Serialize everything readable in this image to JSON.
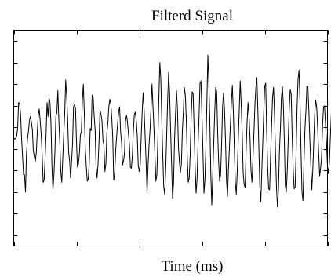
{
  "chart_data": {
    "type": "line",
    "title": "Filterd Signal",
    "xlabel": "Time (ms)",
    "ylabel": "",
    "xlim": [
      0,
      400
    ],
    "ylim": [
      -1,
      1
    ],
    "x_ticks": [
      0,
      80,
      160,
      240,
      320,
      400
    ],
    "y_ticks": [
      -0.9,
      -0.7,
      -0.5,
      -0.3,
      -0.1,
      0.1,
      0.3,
      0.5,
      0.7,
      0.9
    ],
    "x_tick_labels": [],
    "y_tick_labels": [],
    "grid": false,
    "legend": "none",
    "series": [
      {
        "color": "#000000",
        "x_start": 0,
        "x_step": 1.25,
        "values": [
          0.0,
          -0.01,
          0.0,
          0.02,
          0.09,
          0.33,
          0.32,
          0.22,
          0.0,
          -0.17,
          -0.34,
          -0.34,
          -0.5,
          -0.15,
          -0.01,
          0.06,
          0.16,
          0.2,
          0.15,
          0.08,
          -0.12,
          -0.17,
          -0.22,
          -0.14,
          0.05,
          0.21,
          0.27,
          0.16,
          0.03,
          -0.15,
          -0.41,
          -0.39,
          -0.19,
          0.04,
          0.33,
          0.2,
          0.37,
          0.33,
          0.13,
          -0.27,
          -0.48,
          -0.34,
          -0.13,
          0.2,
          0.24,
          0.44,
          0.17,
          -0.04,
          -0.31,
          -0.41,
          -0.19,
          0.04,
          0.23,
          0.54,
          0.39,
          0.18,
          -0.13,
          -0.21,
          -0.37,
          -0.22,
          -0.05,
          0.29,
          0.31,
          0.28,
          -0.03,
          -0.27,
          -0.24,
          -0.14,
          0.03,
          0.06,
          0.35,
          0.5,
          0.23,
          -0.1,
          -0.26,
          -0.4,
          -0.38,
          -0.24,
          0.09,
          0.07,
          0.4,
          0.38,
          0.21,
          0.08,
          -0.27,
          -0.37,
          -0.24,
          -0.03,
          0.26,
          0.22,
          0.16,
          -0.02,
          -0.07,
          -0.31,
          -0.24,
          0.05,
          0.14,
          0.29,
          0.36,
          0.32,
          0.19,
          0.0,
          -0.39,
          -0.33,
          -0.11,
          0.02,
          0.14,
          0.24,
          0.29,
          0.06,
          -0.04,
          -0.25,
          -0.21,
          -0.14,
          0.16,
          0.21,
          0.15,
          0.04,
          -0.06,
          -0.27,
          -0.28,
          -0.16,
          0.07,
          0.22,
          0.24,
          0.16,
          0.02,
          -0.25,
          -0.31,
          -0.25,
          0.01,
          0.24,
          0.42,
          0.26,
          0.02,
          -0.21,
          -0.51,
          -0.26,
          -0.07,
          0.07,
          0.27,
          0.5,
          0.3,
          0.09,
          -0.15,
          -0.4,
          -0.34,
          -0.02,
          0.36,
          0.7,
          0.55,
          0.18,
          -0.16,
          -0.45,
          -0.52,
          -0.29,
          0.02,
          0.36,
          0.61,
          0.41,
          0.08,
          -0.24,
          -0.56,
          -0.42,
          -0.02,
          0.22,
          0.44,
          0.27,
          -0.08,
          -0.22,
          -0.32,
          -0.24,
          0.07,
          0.24,
          0.47,
          0.4,
          0.18,
          -0.18,
          -0.41,
          -0.37,
          -0.14,
          0.2,
          0.43,
          0.41,
          0.08,
          -0.26,
          -0.51,
          -0.38,
          -0.06,
          0.19,
          0.51,
          0.53,
          0.2,
          -0.13,
          -0.51,
          -0.39,
          -0.07,
          0.33,
          0.77,
          0.52,
          0.16,
          -0.33,
          -0.62,
          -0.34,
          -0.04,
          0.24,
          0.47,
          0.43,
          0.06,
          -0.22,
          -0.4,
          -0.34,
          -0.06,
          0.29,
          0.42,
          0.26,
          -0.02,
          -0.39,
          -0.54,
          -0.29,
          -0.09,
          0.13,
          0.33,
          0.49,
          0.24,
          -0.09,
          -0.41,
          -0.52,
          -0.31,
          -0.02,
          0.26,
          0.53,
          0.32,
          0.05,
          -0.32,
          -0.43,
          -0.46,
          -0.12,
          0.15,
          0.33,
          0.2,
          0.0,
          -0.3,
          -0.41,
          -0.19,
          0.05,
          0.31,
          0.47,
          0.56,
          0.26,
          -0.08,
          -0.45,
          -0.59,
          -0.31,
          -0.04,
          0.24,
          0.48,
          0.51,
          0.06,
          -0.27,
          -0.47,
          -0.48,
          -0.16,
          0.12,
          0.38,
          0.47,
          0.22,
          -0.14,
          -0.46,
          -0.64,
          -0.48,
          -0.12,
          0.08,
          0.37,
          0.48,
          0.31,
          -0.03,
          -0.44,
          -0.5,
          -0.3,
          -0.01,
          0.27,
          0.45,
          0.41,
          0.02,
          -0.28,
          -0.47,
          -0.46,
          -0.14,
          0.29,
          0.55,
          0.63,
          0.33,
          -0.12,
          -0.5,
          -0.58,
          -0.24,
          0.08,
          0.25,
          0.48,
          0.48,
          0.26,
          -0.01,
          -0.24,
          -0.48,
          -0.3,
          -0.04,
          0.23,
          0.35,
          0.29,
          0.09,
          -0.13,
          -0.35,
          -0.28,
          -0.17,
          0.12,
          0.29,
          0.3,
          0.13,
          -0.04,
          -0.26,
          -0.33,
          -0.22,
          0.02,
          0.24,
          0.44,
          0.35,
          0.07,
          -0.14,
          -0.39,
          -0.24,
          -0.1,
          0.16,
          0.37,
          0.31,
          0.11,
          -0.11,
          -0.31,
          -0.34,
          -0.2,
          0.05
        ]
      }
    ]
  }
}
